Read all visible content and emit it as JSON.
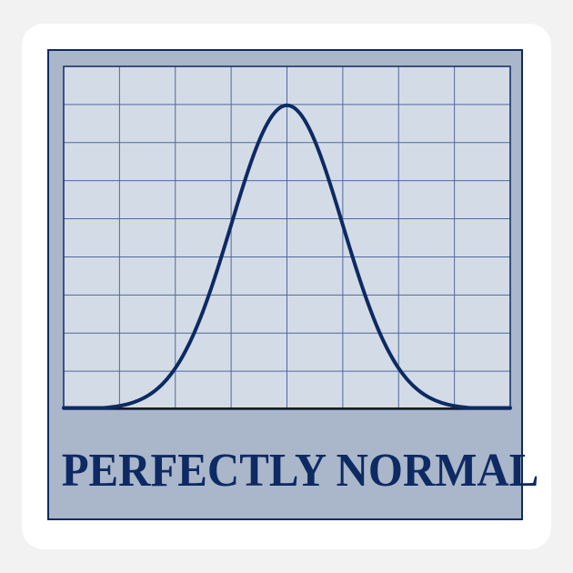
{
  "caption": "PERFECTLY NORMAL",
  "colors": {
    "sticker_border": "#ffffff",
    "panel_fill": "#aab6ca",
    "grid_fill": "#d3dbe6",
    "grid_line": "#4f6a9c",
    "navy": "#0d2a63"
  },
  "chart_data": {
    "type": "line",
    "title": "",
    "xlabel": "",
    "ylabel": "",
    "grid": true,
    "grid_columns": 8,
    "grid_rows": 9,
    "xlim": [
      -4,
      4
    ],
    "ylim": [
      0,
      0.45
    ],
    "series": [
      {
        "mean": 0,
        "sd": 1
      }
    ]
  }
}
